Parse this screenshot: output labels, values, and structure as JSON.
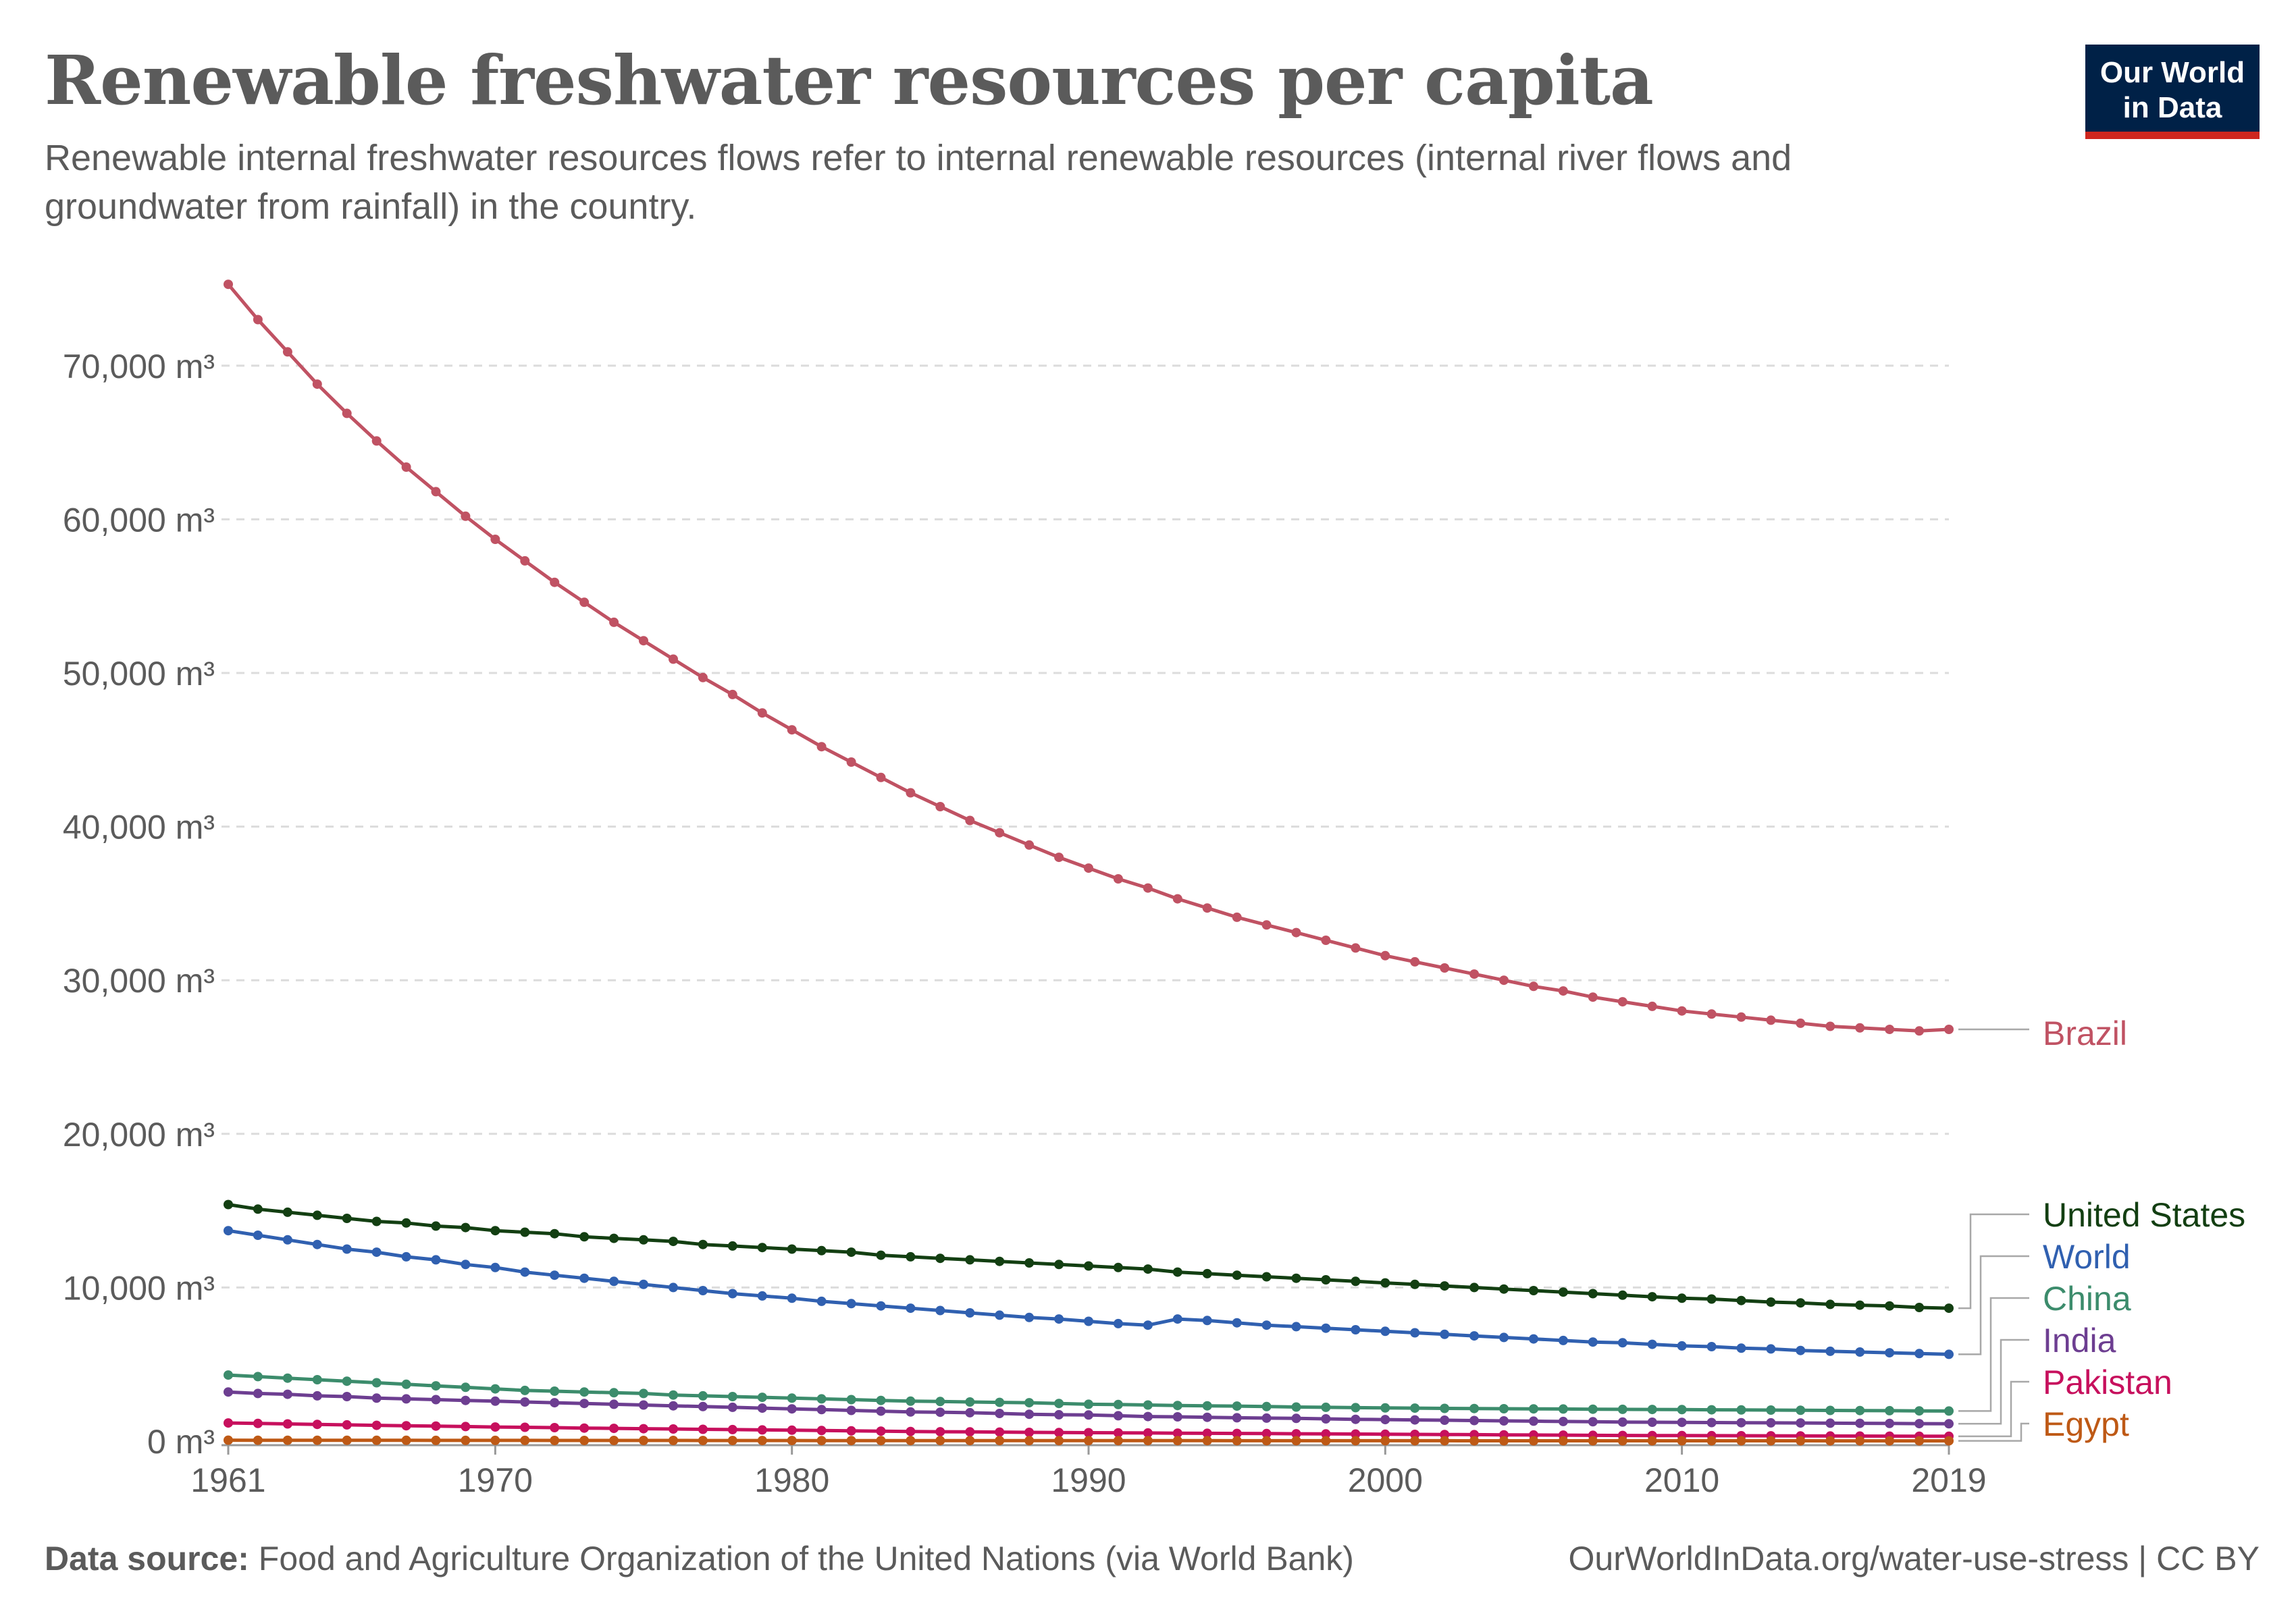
{
  "title": "Renewable freshwater resources per capita",
  "subtitle": "Renewable internal freshwater resources flows refer to internal renewable resources (internal river flows and groundwater from rainfall) in the country.",
  "logo": {
    "line1": "Our World",
    "line2": "in Data"
  },
  "footer": {
    "source_label": "Data source:",
    "source_text": "Food and Agriculture Organization of the United Nations (via World Bank)",
    "right_text": "OurWorldInData.org/water-use-stress | CC BY"
  },
  "chart_data": {
    "type": "line",
    "xlim": [
      1961,
      2019
    ],
    "ylim": [
      0,
      75000
    ],
    "x_ticks": [
      {
        "value": 1961,
        "label": "1961"
      },
      {
        "value": 1970,
        "label": "1970"
      },
      {
        "value": 1980,
        "label": "1980"
      },
      {
        "value": 1990,
        "label": "1990"
      },
      {
        "value": 2000,
        "label": "2000"
      },
      {
        "value": 2010,
        "label": "2010"
      },
      {
        "value": 2019,
        "label": "2019"
      }
    ],
    "y_ticks": [
      {
        "value": 0,
        "label": "0 m³"
      },
      {
        "value": 10000,
        "label": "10,000 m³"
      },
      {
        "value": 20000,
        "label": "20,000 m³"
      },
      {
        "value": 30000,
        "label": "30,000 m³"
      },
      {
        "value": 40000,
        "label": "40,000 m³"
      },
      {
        "value": 50000,
        "label": "50,000 m³"
      },
      {
        "value": 60000,
        "label": "60,000 m³"
      },
      {
        "value": 70000,
        "label": "70,000 m³"
      }
    ],
    "grid": "horizontal-dashed",
    "legend": "right-end-labels",
    "series": [
      {
        "name": "Brazil",
        "color": "#c05263",
        "x_start": 1961,
        "x_end": 2019,
        "values": [
          75300,
          73000,
          70900,
          68800,
          66900,
          65100,
          63400,
          61800,
          60200,
          58700,
          57300,
          55900,
          54600,
          53300,
          52100,
          50900,
          49700,
          48600,
          47400,
          46300,
          45200,
          44200,
          43200,
          42200,
          41300,
          40400,
          39600,
          38800,
          38000,
          37300,
          36600,
          36000,
          35300,
          34700,
          34100,
          33600,
          33100,
          32600,
          32100,
          31600,
          31200,
          30800,
          30400,
          30000,
          29600,
          29300,
          28900,
          28600,
          28300,
          28000,
          27800,
          27600,
          27400,
          27200,
          27000,
          26900,
          26800,
          26700,
          26800
        ]
      },
      {
        "name": "United States",
        "color": "#133f12",
        "x_start": 1961,
        "x_end": 2019,
        "values": [
          15400,
          15100,
          14900,
          14700,
          14500,
          14300,
          14200,
          14000,
          13900,
          13700,
          13600,
          13500,
          13300,
          13200,
          13100,
          13000,
          12800,
          12700,
          12600,
          12500,
          12400,
          12300,
          12100,
          12000,
          11900,
          11800,
          11700,
          11600,
          11500,
          11400,
          11300,
          11200,
          11000,
          10900,
          10800,
          10700,
          10600,
          10500,
          10400,
          10300,
          10200,
          10100,
          10000,
          9900,
          9800,
          9700,
          9600,
          9500,
          9400,
          9300,
          9250,
          9150,
          9050,
          9000,
          8900,
          8850,
          8800,
          8700,
          8650
        ]
      },
      {
        "name": "World",
        "color": "#3060b0",
        "x_start": 1961,
        "x_end": 2019,
        "values": [
          13700,
          13400,
          13100,
          12800,
          12500,
          12300,
          12000,
          11800,
          11500,
          11300,
          11000,
          10800,
          10600,
          10400,
          10200,
          10000,
          9800,
          9600,
          9450,
          9300,
          9100,
          8950,
          8800,
          8650,
          8500,
          8350,
          8200,
          8050,
          7950,
          7800,
          7650,
          7550,
          7950,
          7850,
          7700,
          7550,
          7450,
          7350,
          7250,
          7150,
          7050,
          6950,
          6850,
          6750,
          6650,
          6550,
          6450,
          6400,
          6300,
          6200,
          6150,
          6050,
          6000,
          5900,
          5850,
          5800,
          5750,
          5700,
          5650
        ]
      },
      {
        "name": "China",
        "color": "#3c8c6c",
        "x_start": 1961,
        "x_end": 2019,
        "values": [
          4300,
          4200,
          4100,
          4000,
          3900,
          3800,
          3700,
          3600,
          3500,
          3400,
          3300,
          3250,
          3200,
          3150,
          3100,
          3000,
          2950,
          2900,
          2850,
          2800,
          2750,
          2700,
          2650,
          2600,
          2580,
          2550,
          2520,
          2500,
          2450,
          2400,
          2380,
          2350,
          2320,
          2300,
          2280,
          2250,
          2220,
          2200,
          2180,
          2160,
          2150,
          2130,
          2120,
          2110,
          2100,
          2090,
          2080,
          2070,
          2060,
          2050,
          2040,
          2030,
          2020,
          2010,
          2000,
          1990,
          1980,
          1970,
          1960
        ]
      },
      {
        "name": "India",
        "color": "#6d3e91",
        "x_start": 1961,
        "x_end": 2019,
        "values": [
          3200,
          3100,
          3050,
          2950,
          2900,
          2800,
          2750,
          2700,
          2650,
          2600,
          2550,
          2500,
          2450,
          2400,
          2350,
          2300,
          2250,
          2200,
          2150,
          2100,
          2050,
          2000,
          1950,
          1900,
          1880,
          1850,
          1800,
          1750,
          1720,
          1700,
          1650,
          1600,
          1580,
          1550,
          1520,
          1500,
          1480,
          1450,
          1420,
          1400,
          1380,
          1360,
          1340,
          1320,
          1300,
          1280,
          1260,
          1240,
          1230,
          1220,
          1210,
          1200,
          1190,
          1180,
          1170,
          1160,
          1150,
          1140,
          1130
        ]
      },
      {
        "name": "Pakistan",
        "color": "#c7105d",
        "x_start": 1961,
        "x_end": 2019,
        "values": [
          1180,
          1150,
          1120,
          1090,
          1060,
          1030,
          1000,
          980,
          950,
          920,
          900,
          880,
          850,
          830,
          810,
          790,
          770,
          750,
          730,
          710,
          690,
          670,
          650,
          630,
          610,
          600,
          590,
          570,
          560,
          550,
          540,
          530,
          520,
          510,
          500,
          490,
          480,
          470,
          460,
          450,
          440,
          430,
          420,
          410,
          400,
          390,
          380,
          370,
          365,
          360,
          355,
          350,
          345,
          340,
          335,
          330,
          325,
          320,
          315
        ]
      },
      {
        "name": "Egypt",
        "color": "#be5915",
        "x_start": 1961,
        "x_end": 2019,
        "values": [
          60,
          58,
          57,
          55,
          54,
          52,
          51,
          50,
          49,
          48,
          47,
          46,
          45,
          44,
          43,
          42,
          41,
          40,
          39,
          38,
          37,
          36,
          35,
          34,
          34,
          33,
          33,
          32,
          31,
          31,
          30,
          30,
          29,
          29,
          28,
          28,
          27,
          27,
          26,
          26,
          25,
          25,
          24,
          24,
          23,
          23,
          22,
          22,
          22,
          21,
          21,
          20,
          20,
          20,
          19,
          19,
          19,
          18,
          18
        ]
      }
    ]
  }
}
